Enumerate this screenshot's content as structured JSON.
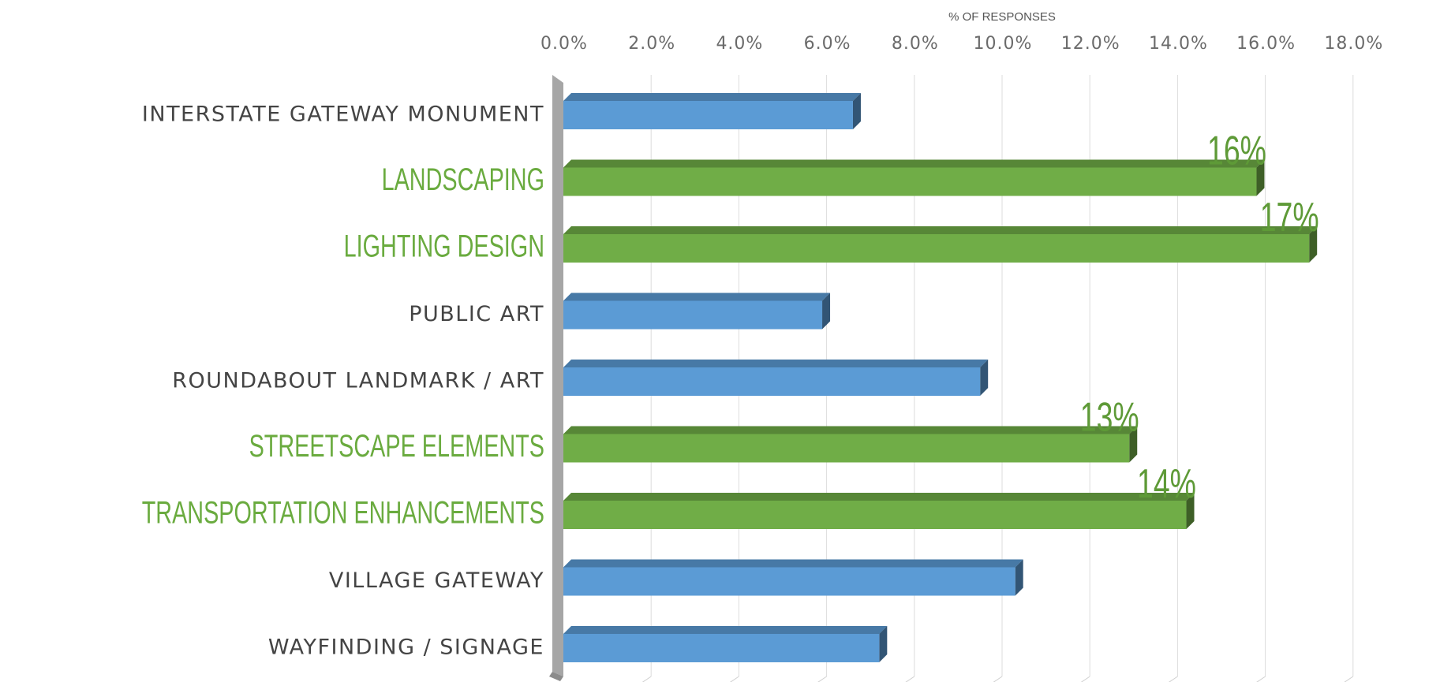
{
  "chart_data": {
    "type": "bar",
    "orientation": "horizontal",
    "xlabel": "% OF RESPONSES",
    "xlabel_position": "top",
    "xlim": [
      0,
      18
    ],
    "x_ticks": [
      "0.0%",
      "2.0%",
      "4.0%",
      "6.0%",
      "8.0%",
      "10.0%",
      "12.0%",
      "14.0%",
      "16.0%",
      "18.0%"
    ],
    "grid": true,
    "style": "3d",
    "categories": [
      "INTERSTATE GATEWAY MONUMENT",
      "LANDSCAPING",
      "LIGHTING DESIGN",
      "PUBLIC ART",
      "ROUNDABOUT LANDMARK / ART",
      "STREETSCAPE ELEMENTS",
      "TRANSPORTATION ENHANCEMENTS",
      "VILLAGE GATEWAY",
      "WAYFINDING / SIGNAGE"
    ],
    "values": [
      6.6,
      15.8,
      17.0,
      5.9,
      9.5,
      12.9,
      14.2,
      10.3,
      7.2
    ],
    "highlighted": [
      false,
      true,
      true,
      false,
      false,
      true,
      true,
      false,
      false
    ],
    "data_labels": [
      "",
      "16%",
      "17%",
      "",
      "",
      "13%",
      "14%",
      "",
      ""
    ],
    "colors": {
      "normal": "#5b9bd5",
      "highlight": "#70ad47",
      "highlight_text": "#6aab3f"
    }
  }
}
